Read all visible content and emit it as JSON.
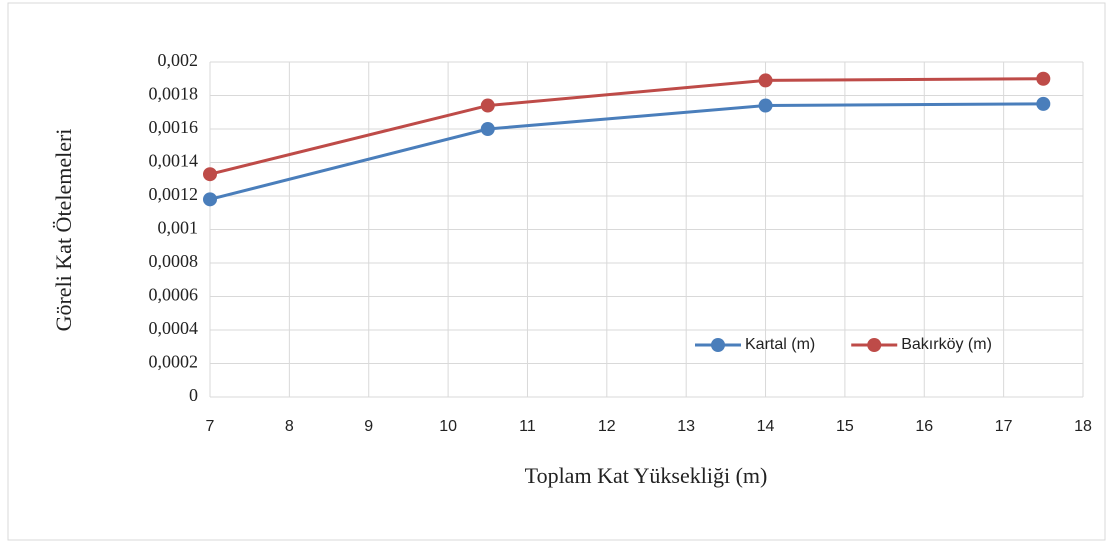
{
  "chart_data": {
    "type": "line",
    "x_label": "Toplam Kat Yüksekliği (m)",
    "y_label": "Göreli Kat Ötelemeleri",
    "x": [
      7,
      10.5,
      14,
      17.5
    ],
    "series": [
      {
        "name": "Kartal (m)",
        "color": "#4a7ebb",
        "values": [
          0.00118,
          0.0016,
          0.00174,
          0.00175
        ]
      },
      {
        "name": "Bakırköy (m)",
        "color": "#be4b48",
        "values": [
          0.00133,
          0.00174,
          0.00189,
          0.0019
        ]
      }
    ],
    "xlim": [
      7,
      18
    ],
    "xticks": [
      7,
      8,
      9,
      10,
      11,
      12,
      13,
      14,
      15,
      16,
      17,
      18
    ],
    "ylim": [
      0,
      0.002
    ],
    "yticks": [
      0,
      {
        "value": 0.0002,
        "label": "0,0002"
      },
      {
        "value": 0.0004,
        "label": "0,0004"
      },
      {
        "value": 0.0006,
        "label": "0,0006"
      },
      {
        "value": 0.0008,
        "label": "0,0008"
      },
      {
        "value": 0.001,
        "label": "0,001"
      },
      {
        "value": 0.0012,
        "label": "0,0012"
      },
      {
        "value": 0.0014,
        "label": "0,0014"
      },
      {
        "value": 0.0016,
        "label": "0,0016"
      },
      {
        "value": 0.0018,
        "label": "0,0018"
      },
      {
        "value": 0.002,
        "label": "0,002"
      }
    ],
    "grid": true,
    "legend": "lower right"
  }
}
